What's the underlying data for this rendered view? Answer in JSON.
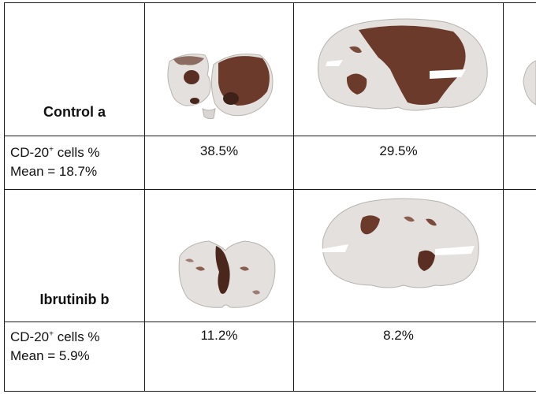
{
  "table": {
    "rows": [
      {
        "group": "Control a",
        "metric": {
          "prefix": "CD-20",
          "sup": "+",
          "suffix": " cells %",
          "mean": "Mean = 18.7%"
        },
        "values": [
          "38.5%",
          "29.5%"
        ]
      },
      {
        "group": "Ibrutinib b",
        "metric": {
          "prefix": "CD-20",
          "sup": "+",
          "suffix": " cells %",
          "mean": "Mean = 5.9%"
        },
        "values": [
          "11.2%",
          "8.2%"
        ]
      }
    ]
  },
  "colors": {
    "tissue": "#e3e0dd",
    "tissue_edge": "#b9b3ae",
    "stain": "#6b3a2a",
    "grid_line": "#1a1a1a"
  }
}
